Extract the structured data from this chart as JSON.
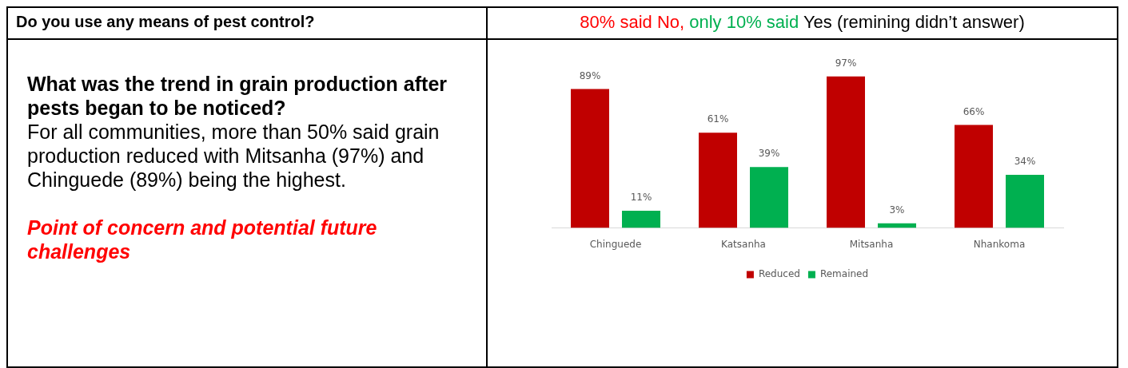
{
  "chart_data": {
    "type": "bar",
    "categories": [
      "Chinguede",
      "Katsanha",
      "Mitsanha",
      "Nhankoma"
    ],
    "series": [
      {
        "name": "Reduced",
        "color": "#c00000",
        "values": [
          89,
          61,
          97,
          66
        ],
        "value_labels": [
          "89%",
          "61%",
          "97%",
          "66%"
        ]
      },
      {
        "name": "Remained",
        "color": "#00b050",
        "values": [
          11,
          39,
          3,
          34
        ],
        "value_labels": [
          "11%",
          "39%",
          "3%",
          "34%"
        ]
      }
    ],
    "legend": "bottom",
    "grid": false,
    "tick_labels": "x",
    "annotations": [
      "Do you use any means of pest control?",
      "80% said No,",
      "only 10% said",
      "Yes (remining didn’t answer)",
      "What was the trend in grain production after pests began to be noticed?",
      "For all communities, more than 50% said grain production reduced with Mitsanha (97%) and Chinguede (89%) being the highest.",
      "Point of concern and potential future challenges"
    ]
  }
}
